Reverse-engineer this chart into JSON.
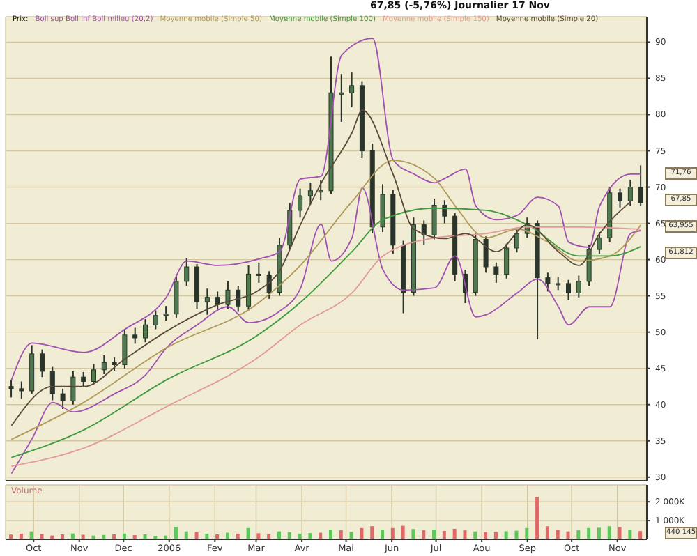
{
  "chart_data": [
    {
      "type": "candlestick",
      "title": "67,85 (-5,76%)   Journalier 17 Nov",
      "legend_title": "Prix:",
      "legend": "top left",
      "grid": true,
      "tick_labels": "y",
      "color": "#2a342a",
      "x": [
        "2005-09-16",
        "2005-09-23",
        "2005-09-30",
        "2005-10-07",
        "2005-10-14",
        "2005-10-21",
        "2005-10-28",
        "2005-11-04",
        "2005-11-11",
        "2005-11-18",
        "2005-11-25",
        "2005-12-02",
        "2005-12-09",
        "2005-12-16",
        "2005-12-23",
        "2005-12-30",
        "2006-01-06",
        "2006-01-13",
        "2006-01-20",
        "2006-01-27",
        "2006-02-03",
        "2006-02-10",
        "2006-02-17",
        "2006-02-24",
        "2006-03-03",
        "2006-03-10",
        "2006-03-17",
        "2006-03-24",
        "2006-03-31",
        "2006-04-07",
        "2006-04-14",
        "2006-04-21",
        "2006-04-28",
        "2006-05-05",
        "2006-05-12",
        "2006-05-19",
        "2006-05-26",
        "2006-06-02",
        "2006-06-09",
        "2006-06-16",
        "2006-06-23",
        "2006-06-30",
        "2006-07-07",
        "2006-07-14",
        "2006-07-21",
        "2006-07-28",
        "2006-08-04",
        "2006-08-11",
        "2006-08-18",
        "2006-08-25",
        "2006-09-01",
        "2006-09-08",
        "2006-09-15",
        "2006-09-22",
        "2006-09-29",
        "2006-10-06",
        "2006-10-13",
        "2006-10-20",
        "2006-10-27",
        "2006-11-03",
        "2006-11-10",
        "2006-11-17"
      ],
      "ohlc": [
        [
          42.5,
          43.4,
          41.0,
          42.2
        ],
        [
          42.2,
          43.2,
          40.8,
          41.9
        ],
        [
          41.9,
          48.2,
          41.5,
          47.0
        ],
        [
          47.0,
          47.6,
          43.8,
          44.6
        ],
        [
          44.6,
          45.2,
          40.6,
          41.5
        ],
        [
          41.5,
          42.2,
          39.4,
          40.5
        ],
        [
          40.5,
          44.6,
          40.0,
          43.8
        ],
        [
          43.8,
          44.5,
          42.4,
          43.2
        ],
        [
          43.2,
          45.6,
          42.8,
          44.8
        ],
        [
          44.8,
          46.8,
          44.2,
          45.8
        ],
        [
          45.8,
          46.5,
          44.6,
          45.5
        ],
        [
          45.5,
          50.4,
          45.0,
          49.6
        ],
        [
          49.6,
          50.6,
          48.4,
          49.2
        ],
        [
          49.2,
          51.8,
          48.6,
          51.0
        ],
        [
          51.0,
          53.0,
          50.4,
          52.3
        ],
        [
          52.3,
          53.6,
          51.6,
          52.5
        ],
        [
          52.5,
          58.0,
          52.0,
          57.0
        ],
        [
          57.0,
          60.2,
          56.4,
          59.0
        ],
        [
          59.0,
          59.4,
          53.2,
          54.2
        ],
        [
          54.2,
          56.0,
          52.4,
          54.8
        ],
        [
          54.8,
          55.6,
          53.0,
          53.8
        ],
        [
          53.8,
          57.0,
          53.2,
          55.8
        ],
        [
          55.8,
          56.4,
          52.8,
          53.6
        ],
        [
          53.6,
          59.2,
          53.0,
          58.0
        ],
        [
          58.0,
          59.6,
          56.8,
          57.9
        ],
        [
          57.9,
          58.4,
          54.6,
          55.5
        ],
        [
          55.5,
          63.0,
          55.0,
          62.0
        ],
        [
          62.0,
          67.8,
          61.4,
          66.8
        ],
        [
          66.8,
          69.8,
          65.8,
          68.8
        ],
        [
          68.8,
          70.6,
          67.6,
          69.5
        ],
        [
          69.5,
          71.0,
          68.2,
          69.5
        ],
        [
          69.5,
          88.0,
          69.0,
          83.0
        ],
        [
          83.0,
          85.6,
          79.0,
          83.0
        ],
        [
          83.0,
          85.8,
          81.0,
          84.0
        ],
        [
          84.0,
          84.6,
          74.0,
          75.0
        ],
        [
          75.0,
          76.0,
          63.6,
          64.5
        ],
        [
          64.5,
          70.4,
          63.8,
          69.0
        ],
        [
          69.0,
          69.6,
          60.8,
          62.0
        ],
        [
          62.0,
          62.6,
          52.6,
          55.5
        ],
        [
          55.5,
          65.8,
          55.0,
          64.8
        ],
        [
          64.8,
          65.4,
          62.0,
          63.4
        ],
        [
          63.4,
          68.4,
          62.8,
          67.5
        ],
        [
          67.5,
          68.2,
          65.0,
          66.0
        ],
        [
          66.0,
          66.4,
          57.0,
          58.0
        ],
        [
          58.0,
          58.6,
          54.0,
          55.5
        ],
        [
          55.5,
          63.6,
          55.0,
          62.8
        ],
        [
          62.8,
          63.2,
          58.2,
          59.0
        ],
        [
          59.0,
          59.6,
          56.8,
          58.0
        ],
        [
          58.0,
          62.2,
          57.4,
          61.6
        ],
        [
          61.6,
          64.4,
          61.0,
          63.6
        ],
        [
          63.6,
          65.8,
          63.0,
          65.0
        ],
        [
          65.0,
          65.4,
          49.0,
          57.5
        ],
        [
          57.5,
          58.2,
          55.6,
          56.7
        ],
        [
          56.7,
          57.6,
          55.8,
          56.7
        ],
        [
          56.7,
          57.2,
          54.4,
          55.4
        ],
        [
          55.4,
          57.8,
          54.8,
          57.0
        ],
        [
          57.0,
          62.0,
          56.4,
          61.4
        ],
        [
          61.4,
          63.8,
          60.8,
          63.0
        ],
        [
          63.0,
          70.0,
          62.4,
          69.2
        ],
        [
          69.2,
          69.8,
          67.2,
          68.1
        ],
        [
          68.1,
          71.0,
          67.4,
          70.0
        ],
        [
          70.0,
          73.0,
          67.4,
          67.85
        ]
      ],
      "series": [
        {
          "type": "line",
          "name": "Boll sup Boll inf Boll milieu (20,2)",
          "color": "#a050b0",
          "x": [
            "2005-09-16",
            "2005-09-30",
            "2005-11-04",
            "2005-12-02",
            "2005-12-30",
            "2006-01-13",
            "2006-02-03",
            "2006-03-03",
            "2006-03-17",
            "2006-03-31",
            "2006-04-14",
            "2006-04-28",
            "2006-05-19",
            "2006-06-02",
            "2006-06-16",
            "2006-06-30",
            "2006-07-07",
            "2006-07-21",
            "2006-07-28",
            "2006-08-11",
            "2006-08-25",
            "2006-09-08",
            "2006-09-22",
            "2006-09-29",
            "2006-10-13",
            "2006-10-20",
            "2006-11-10",
            "2006-11-17"
          ],
          "values": [
            43.4,
            48.5,
            47.2,
            50.4,
            54.8,
            59.8,
            59.2,
            60.1,
            61.1,
            71.1,
            71.5,
            88.2,
            90.5,
            73.7,
            71.8,
            70.6,
            71.2,
            72.5,
            67.4,
            65.5,
            66.1,
            68.6,
            67.4,
            62.4,
            61.7,
            67.4,
            71.8,
            71.8
          ]
        },
        {
          "type": "line",
          "color": "#a050b0",
          "x": [
            "2005-09-16",
            "2005-09-30",
            "2005-10-14",
            "2005-10-28",
            "2005-11-25",
            "2005-12-16",
            "2005-12-30",
            "2006-01-20",
            "2006-02-10",
            "2006-02-24",
            "2006-03-17",
            "2006-03-31",
            "2006-04-14",
            "2006-04-21",
            "2006-05-05",
            "2006-05-12",
            "2006-05-26",
            "2006-06-09",
            "2006-06-30",
            "2006-07-14",
            "2006-07-28",
            "2006-08-04",
            "2006-08-25",
            "2006-09-08",
            "2006-09-22",
            "2006-09-29",
            "2006-10-13",
            "2006-10-27",
            "2006-11-10",
            "2006-11-17"
          ],
          "values": [
            30.5,
            35.3,
            40.3,
            39.0,
            41.5,
            44.1,
            47.8,
            51.0,
            53.5,
            51.3,
            52.9,
            56.0,
            64.9,
            59.8,
            63.0,
            69.9,
            58.6,
            55.8,
            56.1,
            60.5,
            52.1,
            52.4,
            55.4,
            57.3,
            53.5,
            51.0,
            53.5,
            53.5,
            63.6,
            64.0
          ]
        },
        {
          "type": "line",
          "name": "Moyenne mobile (Simple 50)",
          "color": "#b09a5a",
          "x": [
            "2005-09-16",
            "2005-11-04",
            "2005-12-30",
            "2006-03-03",
            "2006-03-31",
            "2006-05-05",
            "2006-06-02",
            "2006-06-30",
            "2006-07-14",
            "2006-08-04",
            "2006-08-25",
            "2006-09-15",
            "2006-10-06",
            "2006-10-27",
            "2006-11-17"
          ],
          "values": [
            35.2,
            40.3,
            47.8,
            54.1,
            59.2,
            68.0,
            73.7,
            71.2,
            67.4,
            63.0,
            64.2,
            62.4,
            59.8,
            60.5,
            64.8
          ]
        },
        {
          "type": "line",
          "name": "Moyenne mobile (Simple 100)",
          "color": "#3f9a3f",
          "x": [
            "2005-09-16",
            "2005-11-04",
            "2005-12-30",
            "2006-03-03",
            "2006-03-31",
            "2006-05-05",
            "2006-05-26",
            "2006-06-30",
            "2006-08-04",
            "2006-09-01",
            "2006-10-06",
            "2006-10-27",
            "2006-11-17"
          ],
          "values": [
            32.7,
            36.5,
            43.4,
            49.7,
            54.1,
            61.1,
            65.5,
            67.1,
            66.8,
            64.8,
            60.5,
            60.5,
            61.8
          ]
        },
        {
          "type": "line",
          "name": "Moyenne mobile (Simple 150)",
          "color": "#e39a9a",
          "x": [
            "2005-09-16",
            "2005-11-04",
            "2005-12-30",
            "2006-03-03",
            "2006-03-31",
            "2006-05-05",
            "2006-05-26",
            "2006-06-30",
            "2006-08-04",
            "2006-09-01",
            "2006-10-06",
            "2006-11-17"
          ],
          "values": [
            31.5,
            34.0,
            39.7,
            46.6,
            51.0,
            55.4,
            60.5,
            63.0,
            63.6,
            64.5,
            64.5,
            64.2
          ]
        },
        {
          "type": "line",
          "name": "Moyenne mobile (Simple 20)",
          "color": "#5a4a3a",
          "x": [
            "2005-09-16",
            "2005-10-14",
            "2005-11-04",
            "2005-12-02",
            "2005-12-30",
            "2006-02-03",
            "2006-03-03",
            "2006-03-17",
            "2006-03-31",
            "2006-04-14",
            "2006-05-05",
            "2006-05-12",
            "2006-06-02",
            "2006-06-16",
            "2006-07-07",
            "2006-07-21",
            "2006-08-11",
            "2006-09-01",
            "2006-09-22",
            "2006-10-06",
            "2006-10-20",
            "2006-11-10"
          ],
          "values": [
            37.1,
            42.5,
            42.5,
            46.3,
            50.1,
            53.8,
            55.8,
            58.5,
            64.8,
            70.5,
            77.5,
            80.6,
            71.7,
            64.2,
            62.9,
            63.6,
            61.1,
            64.8,
            61.1,
            59.2,
            63.6,
            68.0
          ]
        }
      ],
      "xlim": [
        "2005-09-12",
        "2006-11-21"
      ],
      "xticks": [
        {
          "value": "2005-10-01",
          "label": null
        },
        {
          "value": "2005-11-01",
          "label": null
        },
        {
          "value": "2005-12-01",
          "label": null
        },
        {
          "value": "2006-01-01",
          "label": null
        },
        {
          "value": "2006-02-01",
          "label": null
        },
        {
          "value": "2006-03-01",
          "label": null
        },
        {
          "value": "2006-04-01",
          "label": null
        },
        {
          "value": "2006-05-01",
          "label": null
        },
        {
          "value": "2006-06-01",
          "label": null
        },
        {
          "value": "2006-07-01",
          "label": null
        },
        {
          "value": "2006-08-01",
          "label": null
        },
        {
          "value": "2006-09-01",
          "label": null
        },
        {
          "value": "2006-10-01",
          "label": null
        },
        {
          "value": "2006-11-01",
          "label": null
        }
      ],
      "ylim": [
        29.5,
        93.5
      ],
      "yticks": [
        30,
        35,
        40,
        45,
        50,
        55,
        60,
        65,
        70,
        75,
        80,
        85,
        90
      ],
      "annotations": [
        "71,76",
        "67,85",
        "63,955",
        "61,812"
      ]
    },
    {
      "type": "bar",
      "title": "Volume",
      "grid": true,
      "x": [
        "2005-09-16",
        "2005-09-23",
        "2005-09-30",
        "2005-10-07",
        "2005-10-14",
        "2005-10-21",
        "2005-10-28",
        "2005-11-04",
        "2005-11-11",
        "2005-11-18",
        "2005-11-25",
        "2005-12-02",
        "2005-12-09",
        "2005-12-16",
        "2005-12-23",
        "2005-12-30",
        "2006-01-06",
        "2006-01-13",
        "2006-01-20",
        "2006-01-27",
        "2006-02-03",
        "2006-02-10",
        "2006-02-17",
        "2006-02-24",
        "2006-03-03",
        "2006-03-10",
        "2006-03-17",
        "2006-03-24",
        "2006-03-31",
        "2006-04-07",
        "2006-04-14",
        "2006-04-21",
        "2006-04-28",
        "2006-05-05",
        "2006-05-12",
        "2006-05-19",
        "2006-05-26",
        "2006-06-02",
        "2006-06-09",
        "2006-06-16",
        "2006-06-23",
        "2006-06-30",
        "2006-07-07",
        "2006-07-14",
        "2006-07-21",
        "2006-07-28",
        "2006-08-04",
        "2006-08-11",
        "2006-08-18",
        "2006-08-25",
        "2006-09-01",
        "2006-09-08",
        "2006-09-15",
        "2006-09-22",
        "2006-09-29",
        "2006-10-06",
        "2006-10-13",
        "2006-10-20",
        "2006-10-27",
        "2006-11-03",
        "2006-11-10",
        "2006-11-17"
      ],
      "values": [
        250,
        300,
        420,
        280,
        200,
        260,
        310,
        240,
        200,
        230,
        260,
        300,
        220,
        260,
        180,
        200,
        650,
        420,
        380,
        300,
        260,
        350,
        300,
        600,
        320,
        280,
        420,
        380,
        300,
        330,
        350,
        520,
        480,
        400,
        600,
        700,
        520,
        600,
        720,
        550,
        480,
        520,
        450,
        560,
        480,
        420,
        380,
        400,
        430,
        460,
        600,
        2260,
        700,
        500,
        420,
        480,
        600,
        620,
        700,
        650,
        520,
        440
      ],
      "colors": [
        "#e06868",
        "#e06868",
        "#5cc85c",
        "#e06868",
        "#e06868",
        "#e06868",
        "#5cc85c",
        "#e06868",
        "#5cc85c",
        "#5cc85c",
        "#e06868",
        "#5cc85c",
        "#e06868",
        "#5cc85c",
        "#5cc85c",
        "#5cc85c",
        "#5cc85c",
        "#5cc85c",
        "#e06868",
        "#5cc85c",
        "#e06868",
        "#5cc85c",
        "#e06868",
        "#5cc85c",
        "#e06868",
        "#e06868",
        "#5cc85c",
        "#5cc85c",
        "#5cc85c",
        "#5cc85c",
        "#e06868",
        "#5cc85c",
        "#e06868",
        "#5cc85c",
        "#e06868",
        "#e06868",
        "#5cc85c",
        "#e06868",
        "#e06868",
        "#5cc85c",
        "#e06868",
        "#5cc85c",
        "#e06868",
        "#e06868",
        "#e06868",
        "#5cc85c",
        "#e06868",
        "#e06868",
        "#5cc85c",
        "#5cc85c",
        "#5cc85c",
        "#e06868",
        "#e06868",
        "#e06868",
        "#e06868",
        "#5cc85c",
        "#5cc85c",
        "#5cc85c",
        "#5cc85c",
        "#e06868",
        "#5cc85c",
        "#e06868"
      ],
      "xlim": [
        "2005-09-12",
        "2006-11-21"
      ],
      "xticks": [
        {
          "value": "2005-10-01",
          "label": "Oct"
        },
        {
          "value": "2005-11-01",
          "label": "Nov"
        },
        {
          "value": "2005-12-01",
          "label": "Dec"
        },
        {
          "value": "2006-01-01",
          "label": "2006"
        },
        {
          "value": "2006-02-01",
          "label": "Fev"
        },
        {
          "value": "2006-03-01",
          "label": "Mar"
        },
        {
          "value": "2006-04-01",
          "label": "Avr"
        },
        {
          "value": "2006-05-01",
          "label": "Mai"
        },
        {
          "value": "2006-06-01",
          "label": "Jun"
        },
        {
          "value": "2006-07-01",
          "label": "Jul"
        },
        {
          "value": "2006-08-01",
          "label": "Aou"
        },
        {
          "value": "2006-09-01",
          "label": "Sep"
        },
        {
          "value": "2006-10-01",
          "label": "Oct"
        },
        {
          "value": "2006-11-01",
          "label": "Nov"
        }
      ],
      "ylim": [
        0,
        2900
      ],
      "yticks": [
        {
          "value": 1000,
          "label": "1 000K"
        },
        {
          "value": 2000,
          "label": "2 000K"
        }
      ],
      "annotations": [
        "440 145"
      ]
    }
  ]
}
